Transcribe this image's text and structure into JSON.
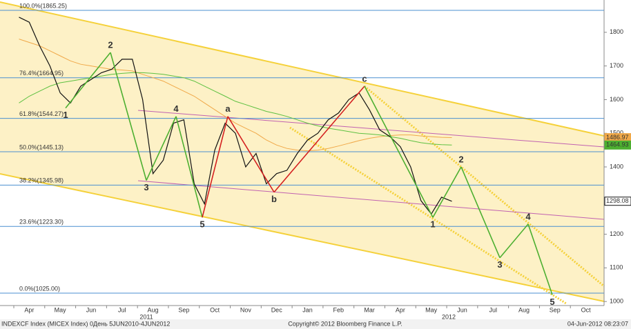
{
  "chart_data": {
    "type": "line",
    "categories": [
      null,
      "Apr",
      null,
      null,
      "May",
      null,
      null,
      "Jun",
      null,
      null,
      "Jul",
      null,
      null,
      "Aug",
      null,
      null,
      "Sep",
      null,
      null,
      "Oct",
      null,
      null,
      "Nov",
      null,
      null,
      "Dec",
      null,
      null,
      "Jan",
      null,
      null,
      "Feb",
      null,
      null,
      "Mar",
      null,
      null,
      "Apr",
      null,
      null,
      "May",
      null,
      null,
      "Jun",
      null,
      null,
      "Jul",
      null,
      null,
      "Aug",
      null,
      null,
      "Sep",
      null,
      null,
      "Oct",
      null
    ],
    "year_labels": [
      "2011",
      "2012"
    ],
    "series": [
      {
        "color": "#111111",
        "values": [
          1845,
          1830,
          1760,
          1700,
          1620,
          1590,
          1640,
          1660,
          1680,
          1690,
          1720,
          1720,
          1600,
          1380,
          1420,
          1530,
          1540,
          1350,
          1290,
          1450,
          1530,
          1500,
          1400,
          1440,
          1350,
          1380,
          1390,
          1440,
          1480,
          1500,
          1540,
          1560,
          1600,
          1620,
          1570,
          1510,
          1490,
          1460,
          1400,
          1300,
          1260,
          1310,
          1298,
          null,
          null,
          null,
          null,
          null,
          null,
          null,
          null,
          null,
          null,
          null,
          null,
          null,
          null
        ]
      },
      {
        "color": "#f0a848",
        "values": [
          1780,
          1770,
          1760,
          1745,
          1730,
          1715,
          1705,
          1700,
          1695,
          1690,
          1688,
          1685,
          1675,
          1665,
          1655,
          1640,
          1625,
          1610,
          1590,
          1570,
          1550,
          1530,
          1515,
          1500,
          1480,
          1465,
          1455,
          1450,
          1448,
          1450,
          1455,
          1462,
          1470,
          1478,
          1485,
          1490,
          1493,
          1495,
          1495,
          1492,
          1490,
          1488,
          1487,
          null,
          null,
          null,
          null,
          null,
          null,
          null,
          null,
          null,
          null,
          null,
          null,
          null,
          null
        ]
      },
      {
        "color": "#5cc040",
        "values": [
          1590,
          1610,
          1625,
          1640,
          1650,
          1655,
          1660,
          1665,
          1670,
          1675,
          1678,
          1680,
          1680,
          1678,
          1675,
          1670,
          1665,
          1655,
          1640,
          1625,
          1610,
          1595,
          1585,
          1575,
          1565,
          1558,
          1550,
          1540,
          1530,
          1522,
          1515,
          1510,
          1505,
          1500,
          1498,
          1495,
          1490,
          1485,
          1478,
          1472,
          1468,
          1466,
          1465,
          null,
          null,
          null,
          null,
          null,
          null,
          null,
          null,
          null,
          null,
          null,
          null,
          null,
          null
        ]
      }
    ],
    "ylim": [
      988,
      1896
    ],
    "yticks": [
      1000,
      1100,
      1200,
      1300,
      1400,
      1500,
      1600,
      1700,
      1800
    ],
    "fib_levels": [
      {
        "value": 1865.25,
        "label": "100.0%(1865.25)"
      },
      {
        "value": 1664.95,
        "label": "76.4%(1664.95)"
      },
      {
        "value": 1544.27,
        "label": "61.8%(1544.27)"
      },
      {
        "value": 1445.13,
        "label": "50.0%(1445.13)"
      },
      {
        "value": 1345.98,
        "label": "38.2%(1345.98)"
      },
      {
        "value": 1223.3,
        "label": "23.6%(1223.30)"
      },
      {
        "value": 1025.0,
        "label": "0.0%(1025.00)"
      }
    ],
    "fib_color": "#4a8fd0",
    "value_tags": [
      {
        "value": 1486.97,
        "color": "#f0a848"
      },
      {
        "value": 1464.93,
        "color": "#4caf30"
      },
      {
        "value": 1298.08,
        "color": "#111111"
      }
    ],
    "waves": [
      {
        "color": "#4caf30",
        "points": [
          {
            "label": "1",
            "value": 1575
          },
          {
            "label": "2",
            "value": 1740
          },
          {
            "label": "3",
            "value": 1360
          },
          {
            "label": "4",
            "value": 1550
          },
          {
            "label": "5",
            "value": 1250
          }
        ]
      },
      {
        "color": "#d42020",
        "points": [
          {
            "label": "a",
            "value": 1550
          },
          {
            "label": "b",
            "value": 1325
          },
          {
            "label": "c",
            "value": 1640
          }
        ]
      },
      {
        "color": "#4caf30",
        "points": [
          {
            "label": "1",
            "value": 1250
          },
          {
            "label": "2",
            "value": 1400
          },
          {
            "label": "3",
            "value": 1130
          },
          {
            "label": "4",
            "value": 1230
          },
          {
            "label": "5",
            "value": 1020
          }
        ]
      }
    ],
    "footer": {
      "left": "INDEXCF Index (MICEX Index) 0Дeнь 5JUN2010-4JUN2012",
      "center": "Copyright© 2012 Bloomberg Finance L.P.",
      "right": "04-Jun-2012 08:23:07"
    }
  }
}
